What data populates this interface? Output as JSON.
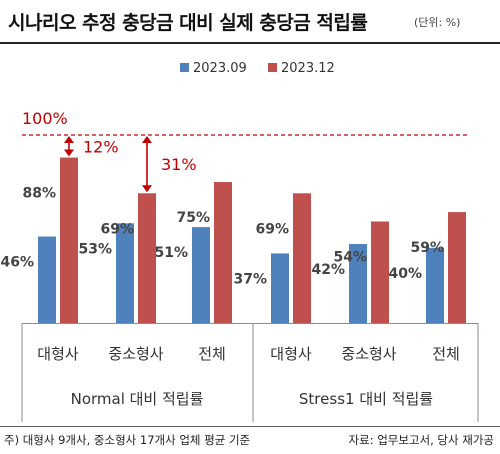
{
  "header": {
    "title": "시나리오 추정 충당금 대비 실제 충당금 적립률",
    "unit": "(단위: %)"
  },
  "footer": {
    "note": "주) 대형사 9개사, 중소형사 17개사 업체 평균 기준",
    "source": "자료: 업무보고서, 당사 재가공"
  },
  "colors": {
    "series1": "#4f81bd",
    "series2": "#c0504d",
    "reference": "#c00000",
    "annotation": "#c00000",
    "axis": "#8c8c8c"
  },
  "chart_data": {
    "type": "bar",
    "title": "시나리오 추정 충당금 대비 실제 충당금 적립률",
    "unit": "%",
    "ylim": [
      0,
      110
    ],
    "grid": false,
    "legend_position": "top",
    "groups": [
      {
        "label": "Normal 대비 적립률",
        "categories": [
          "대형사",
          "중소형사",
          "전체"
        ],
        "series": [
          {
            "name": "2023.09",
            "values": [
              46,
              53,
              51
            ],
            "labels": [
              "46%",
              "53%",
              "51%"
            ]
          },
          {
            "name": "2023.12",
            "values": [
              88,
              69,
              75
            ],
            "labels": [
              "88%",
              "69%",
              "75%"
            ]
          }
        ]
      },
      {
        "label": "Stress1 대비 적립률",
        "categories": [
          "대형사",
          "중소형사",
          "전체"
        ],
        "series": [
          {
            "name": "2023.09",
            "values": [
              37,
              42,
              40
            ],
            "labels": [
              "37%",
              "42%",
              "40%"
            ]
          },
          {
            "name": "2023.12",
            "values": [
              69,
              54,
              59
            ],
            "labels": [
              "69%",
              "54%",
              "59%"
            ]
          }
        ]
      }
    ],
    "reference_line": {
      "value": 100,
      "label": "100%",
      "style": "dashed"
    },
    "annotations": [
      {
        "label": "12%",
        "group": 0,
        "category": 0,
        "from": 88,
        "to": 100
      },
      {
        "label": "31%",
        "group": 0,
        "category": 1,
        "from": 69,
        "to": 100
      }
    ]
  }
}
